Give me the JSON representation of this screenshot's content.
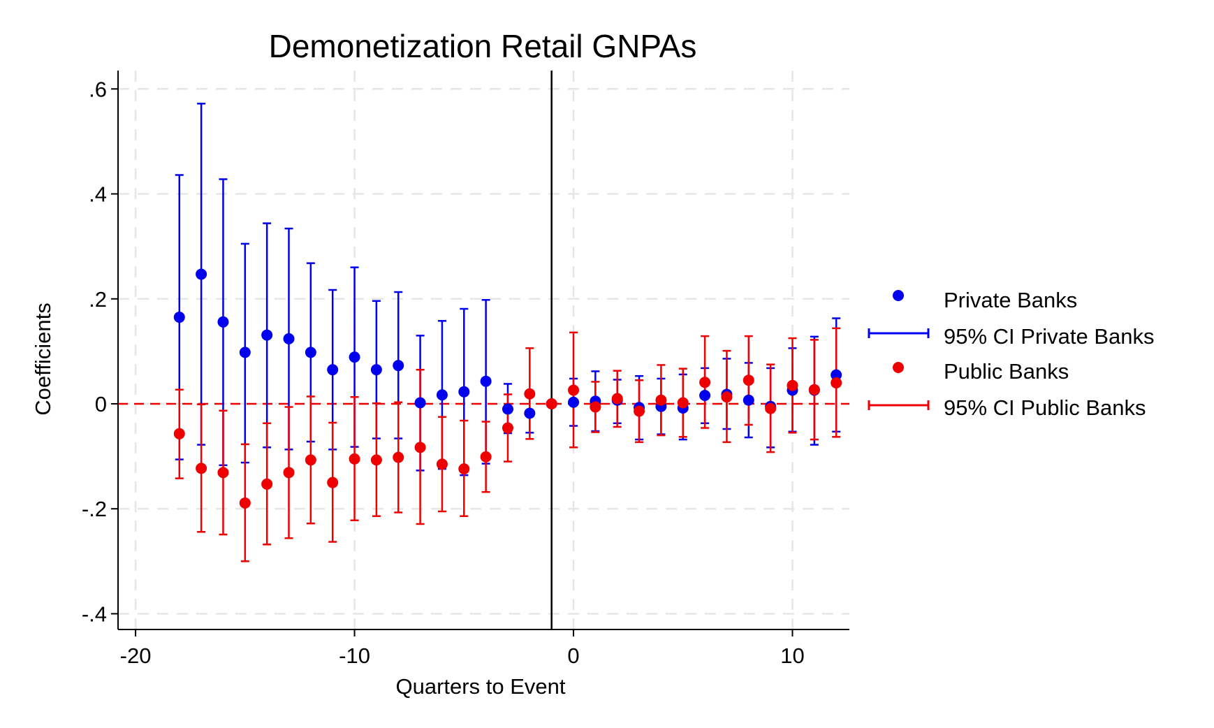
{
  "chart_data": {
    "type": "scatter",
    "title": "Demonetization Retail GNPAs",
    "xlabel": "Quarters to Event",
    "ylabel": "Coefficients",
    "xlim": [
      -20.8,
      12.6
    ],
    "ylim": [
      -0.43,
      0.635
    ],
    "xticks": [
      -20,
      -10,
      0,
      10
    ],
    "xtick_labels": [
      "-20",
      "-10",
      "0",
      "10"
    ],
    "yticks": [
      0.6,
      0.4,
      0.2,
      0,
      -0.2,
      -0.4
    ],
    "ytick_labels": [
      ".6",
      ".4",
      ".2",
      "0",
      "-.2",
      "-.4"
    ],
    "grid": true,
    "zero_line": 0,
    "event_line_x": -1,
    "legend_position": "right",
    "legend": [
      "Private Banks",
      "95% CI Private Banks",
      "Public Banks",
      "95% CI Public Banks"
    ],
    "series": [
      {
        "name": "Private Banks",
        "ci_name": "95% CI Private Banks",
        "color": "#0000ee",
        "x": [
          -18,
          -17,
          -16,
          -15,
          -14,
          -13,
          -12,
          -11,
          -10,
          -9,
          -8,
          -7,
          -6,
          -5,
          -4,
          -3,
          -2,
          -1,
          0,
          1,
          2,
          3,
          4,
          5,
          6,
          7,
          8,
          9,
          10,
          11,
          12
        ],
        "y": [
          0.165,
          0.247,
          0.156,
          0.098,
          0.131,
          0.124,
          0.098,
          0.065,
          0.089,
          0.065,
          0.073,
          0.002,
          0.017,
          0.023,
          0.043,
          -0.01,
          -0.018,
          0.0,
          0.003,
          0.005,
          0.007,
          -0.007,
          -0.005,
          -0.008,
          0.016,
          0.018,
          0.007,
          -0.005,
          0.026,
          0.026,
          0.055
        ],
        "lower": [
          -0.106,
          -0.078,
          -0.117,
          -0.112,
          -0.083,
          -0.087,
          -0.072,
          -0.087,
          -0.082,
          -0.066,
          -0.066,
          -0.127,
          -0.124,
          -0.136,
          -0.114,
          -0.056,
          -0.055,
          0.0,
          -0.042,
          -0.052,
          -0.037,
          -0.068,
          -0.058,
          -0.068,
          -0.037,
          -0.048,
          -0.064,
          -0.083,
          -0.053,
          -0.078,
          -0.053
        ],
        "upper": [
          0.436,
          0.572,
          0.428,
          0.305,
          0.344,
          0.334,
          0.268,
          0.217,
          0.26,
          0.196,
          0.213,
          0.13,
          0.158,
          0.181,
          0.198,
          0.038,
          0.018,
          0.0,
          0.048,
          0.062,
          0.046,
          0.053,
          0.048,
          0.056,
          0.068,
          0.086,
          0.078,
          0.068,
          0.106,
          0.128,
          0.163
        ]
      },
      {
        "name": "Public Banks",
        "ci_name": "95% CI Public Banks",
        "color": "#ee0000",
        "x": [
          -18,
          -17,
          -16,
          -15,
          -14,
          -13,
          -12,
          -11,
          -10,
          -9,
          -8,
          -7,
          -6,
          -5,
          -4,
          -3,
          -2,
          -1,
          0,
          1,
          2,
          3,
          4,
          5,
          6,
          7,
          8,
          9,
          10,
          11,
          12
        ],
        "y": [
          -0.057,
          -0.123,
          -0.131,
          -0.189,
          -0.153,
          -0.131,
          -0.107,
          -0.15,
          -0.105,
          -0.107,
          -0.102,
          -0.083,
          -0.115,
          -0.124,
          -0.101,
          -0.046,
          0.019,
          0.0,
          0.026,
          -0.006,
          0.01,
          -0.014,
          0.007,
          0.002,
          0.041,
          0.013,
          0.045,
          -0.009,
          0.035,
          0.027,
          0.04
        ],
        "lower": [
          -0.142,
          -0.244,
          -0.249,
          -0.3,
          -0.268,
          -0.256,
          -0.228,
          -0.263,
          -0.222,
          -0.214,
          -0.207,
          -0.229,
          -0.205,
          -0.214,
          -0.168,
          -0.11,
          -0.067,
          0.0,
          -0.083,
          -0.054,
          -0.044,
          -0.073,
          -0.06,
          -0.063,
          -0.046,
          -0.073,
          -0.04,
          -0.092,
          -0.055,
          -0.068,
          -0.063
        ],
        "upper": [
          0.027,
          -0.001,
          -0.013,
          -0.077,
          -0.037,
          -0.006,
          0.014,
          -0.036,
          0.013,
          0.001,
          0.003,
          0.065,
          -0.025,
          -0.032,
          -0.034,
          0.018,
          0.106,
          0.0,
          0.136,
          0.042,
          0.063,
          0.045,
          0.074,
          0.067,
          0.129,
          0.101,
          0.129,
          0.075,
          0.125,
          0.122,
          0.144
        ]
      }
    ]
  }
}
